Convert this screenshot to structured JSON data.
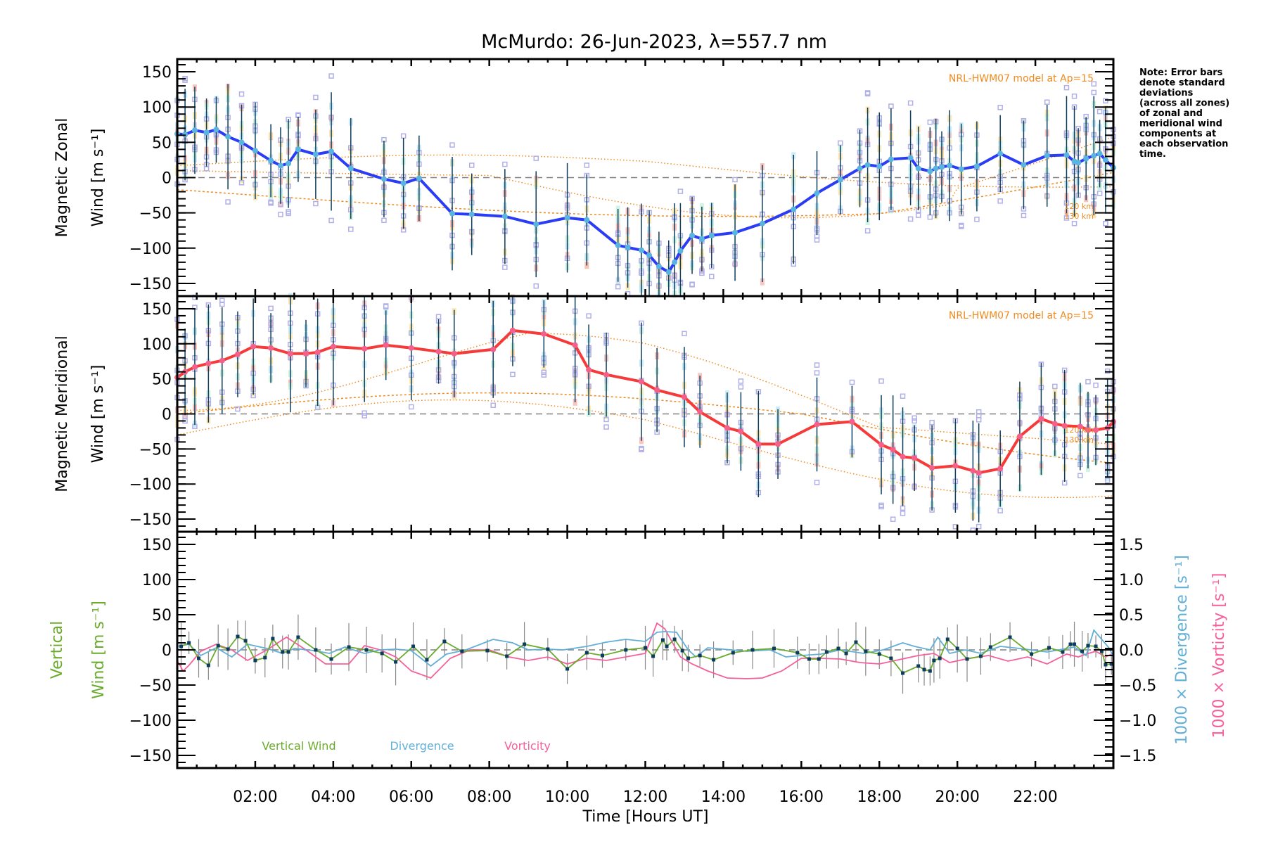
{
  "chart_data": {
    "type": "line",
    "title": "McMurdo: 26-Jun-2023, λ=557.7 nm",
    "xlabel": "Time [Hours UT]",
    "xlim": [
      0,
      24
    ],
    "x_tick_labels": [
      "02:00",
      "04:00",
      "06:00",
      "08:00",
      "10:00",
      "12:00",
      "14:00",
      "16:00",
      "18:00",
      "20:00",
      "22:00"
    ],
    "x_tick_values": [
      2,
      4,
      6,
      8,
      10,
      12,
      14,
      16,
      18,
      20,
      22
    ],
    "note": [
      "Note: Error bars",
      "denote standard",
      "deviations",
      "(across all zones)",
      "of zonal and",
      "meridional wind",
      "components at",
      "each observation",
      "time."
    ],
    "colors": {
      "zonal": "#2b3cf5",
      "zonal_marker": "#5ab4e0",
      "meridional": "#f53a3a",
      "meridional_marker": "#f5608a",
      "vertical": "#6aab2e",
      "divergence": "#62afd8",
      "vorticity": "#f5609a",
      "model": "#f08a1e",
      "errorbar": "#0d3d5c",
      "scatter": "#b0b0e8"
    },
    "panels": [
      {
        "id": "zonal",
        "ylabel_line1": "Magnetic Zonal",
        "ylabel_line2": "Wind [m s",
        "ylabel_sup": "-1",
        "ylabel_end": "]",
        "ylim": [
          -168,
          168
        ],
        "y_tick_values": [
          150,
          100,
          50,
          0,
          -50,
          -100,
          -150
        ],
        "y_tick_labels": [
          "150",
          "100",
          "50",
          "0",
          "−50",
          "−100",
          "−150"
        ],
        "model_label": "NRL-HWM07 model at Ap=15",
        "model_km_labels": [
          "120 km",
          "130 km"
        ],
        "series": {
          "name": "Magnetic Zonal Wind",
          "x": [
            0.0,
            0.2,
            0.45,
            0.75,
            1.0,
            1.3,
            1.65,
            2.0,
            2.4,
            2.65,
            2.85,
            3.1,
            3.55,
            3.95,
            4.45,
            5.3,
            5.8,
            6.2,
            7.05,
            7.55,
            8.4,
            9.2,
            10.0,
            10.5,
            11.3,
            11.55,
            11.9,
            12.1,
            12.35,
            12.6,
            12.75,
            12.9,
            13.2,
            13.45,
            13.7,
            14.3,
            15.0,
            15.8,
            16.4,
            17.0,
            17.5,
            17.7,
            18.0,
            18.3,
            18.8,
            19.0,
            19.3,
            19.45,
            19.6,
            19.8,
            20.1,
            20.5,
            21.1,
            21.7,
            22.3,
            22.8,
            23.0,
            23.1,
            23.3,
            23.5,
            23.65,
            23.8,
            24.0
          ],
          "y": [
            62,
            61,
            67,
            64,
            68,
            58,
            50,
            38,
            24,
            17,
            20,
            40,
            33,
            37,
            13,
            -2,
            -8,
            -1,
            -51,
            -52,
            -55,
            -66,
            -57,
            -60,
            -96,
            -99,
            -103,
            -110,
            -126,
            -134,
            -120,
            -104,
            -82,
            -87,
            -82,
            -78,
            -65,
            -45,
            -22,
            -3,
            13,
            18,
            16,
            26,
            28,
            13,
            9,
            13,
            15,
            17,
            12,
            16,
            34,
            18,
            31,
            32,
            23,
            21,
            27,
            31,
            34,
            25,
            14
          ]
        }
      },
      {
        "id": "meridional",
        "ylabel_line1": "Magnetic Meridional",
        "ylabel_line2": "Wind [m s",
        "ylabel_sup": "-1",
        "ylabel_end": "]",
        "ylim": [
          -168,
          168
        ],
        "y_tick_values": [
          150,
          100,
          50,
          0,
          -50,
          -100,
          -150
        ],
        "y_tick_labels": [
          "150",
          "100",
          "50",
          "0",
          "−50",
          "−100",
          "−150"
        ],
        "model_label": "NRL-HWM07 model at Ap=15",
        "model_km_labels": [
          "120 km",
          "130 km"
        ],
        "series": {
          "name": "Magnetic Meridional Wind",
          "x": [
            0.0,
            0.2,
            0.45,
            0.8,
            1.15,
            1.55,
            1.95,
            2.4,
            2.9,
            3.3,
            3.6,
            4.0,
            4.8,
            5.35,
            6.0,
            6.7,
            7.1,
            8.1,
            8.6,
            9.4,
            10.2,
            10.55,
            11.0,
            11.9,
            12.3,
            13.0,
            13.4,
            14.1,
            14.45,
            14.9,
            15.4,
            16.4,
            17.3,
            18.05,
            18.35,
            18.6,
            18.9,
            19.35,
            19.95,
            20.4,
            20.55,
            21.1,
            21.6,
            22.15,
            22.5,
            22.75,
            23.15,
            23.35,
            23.55,
            23.85,
            24.0
          ],
          "y": [
            52,
            60,
            67,
            72,
            76,
            85,
            96,
            94,
            86,
            86,
            88,
            96,
            93,
            98,
            94,
            89,
            86,
            92,
            119,
            114,
            98,
            63,
            56,
            46,
            34,
            24,
            3,
            -20,
            -25,
            -43,
            -43,
            -15,
            -11,
            -44,
            -51,
            -61,
            -63,
            -77,
            -74,
            -81,
            -84,
            -78,
            -32,
            -7,
            -14,
            -17,
            -18,
            -23,
            -23,
            -20,
            -11
          ]
        }
      },
      {
        "id": "vertical",
        "ylabel_line1": "Vertical",
        "ylabel_line2": "Wind [m s",
        "ylabel_sup": "-1",
        "ylabel_end": "]",
        "ylim": [
          -168,
          168
        ],
        "y_tick_values": [
          150,
          100,
          50,
          0,
          -50,
          -100,
          -150
        ],
        "y_tick_labels": [
          "150",
          "100",
          "50",
          "0",
          "−50",
          "−100",
          "−150"
        ],
        "right_ylim": [
          -1.68,
          1.68
        ],
        "right_tick_values": [
          1.5,
          1.0,
          0.5,
          0.0,
          -0.5,
          -1.0,
          -1.5
        ],
        "right_tick_labels": [
          "1.5",
          "1.0",
          "0.5",
          "0.0",
          "−0.5",
          "−1.0",
          "−1.5"
        ],
        "right_ylabel_div": "1000 × Divergence [s",
        "right_ylabel_vor": "1000 × Vorticity [s",
        "right_ylabel_sup": "-1",
        "right_ylabel_end": "]",
        "legend": [
          "Vertical Wind",
          "Divergence",
          "Vorticity"
        ],
        "series": [
          {
            "name": "Vertical Wind",
            "x": [
              0.1,
              0.3,
              0.55,
              0.8,
              1.05,
              1.3,
              1.55,
              1.75,
              2.0,
              2.25,
              2.45,
              2.7,
              2.85,
              3.1,
              3.55,
              3.95,
              4.4,
              4.85,
              5.25,
              5.6,
              6.05,
              6.4,
              6.85,
              7.3,
              7.95,
              8.45,
              8.9,
              9.5,
              10.0,
              10.5,
              10.9,
              11.5,
              12.0,
              12.2,
              12.45,
              12.55,
              12.75,
              12.95,
              13.1,
              13.4,
              13.75,
              14.25,
              14.75,
              15.3,
              15.9,
              16.2,
              16.45,
              16.65,
              16.95,
              17.15,
              17.4,
              17.65,
              18.0,
              18.3,
              18.6,
              19.0,
              19.15,
              19.3,
              19.4,
              19.55,
              19.75,
              20.0,
              20.25,
              20.6,
              20.85,
              21.35,
              21.9,
              22.35,
              22.7,
              22.9,
              23.0,
              23.2,
              23.35,
              23.55,
              23.7,
              23.8,
              23.95
            ],
            "y": [
              5,
              10,
              -12,
              -22,
              6,
              1,
              19,
              13,
              -15,
              -11,
              16,
              -3,
              -3,
              18,
              0,
              -13,
              4,
              0,
              -5,
              -17,
              5,
              -14,
              12,
              -2,
              -1,
              -9,
              8,
              1,
              -27,
              -4,
              -8,
              0,
              3,
              -9,
              14,
              5,
              15,
              -1,
              -12,
              -8,
              -14,
              -4,
              0,
              2,
              -4,
              -13,
              -13,
              -3,
              2,
              -5,
              11,
              -2,
              -6,
              -12,
              -33,
              -23,
              -28,
              -30,
              -15,
              -12,
              15,
              2,
              -13,
              -9,
              4,
              18,
              -6,
              3,
              -3,
              8,
              8,
              -2,
              6,
              5,
              -2,
              -21,
              -20
            ]
          },
          {
            "name": "Divergence",
            "x": [
              0.0,
              0.3,
              0.6,
              1.0,
              1.4,
              1.8,
              2.3,
              2.7,
              3.0,
              3.5,
              3.9,
              4.3,
              4.8,
              5.2,
              5.6,
              6.0,
              6.5,
              6.9,
              7.4,
              8.1,
              8.6,
              9.0,
              9.5,
              9.9,
              10.5,
              11.0,
              11.5,
              12.0,
              12.3,
              12.5,
              12.8,
              13.1,
              13.3,
              13.6,
              14.2,
              14.6,
              15.2,
              15.6,
              16.0,
              16.5,
              17.0,
              17.6,
              18.1,
              18.6,
              18.9,
              19.3,
              19.5,
              19.8,
              20.2,
              20.6,
              21.1,
              21.6,
              22.3,
              22.6,
              23.0,
              23.3,
              23.5,
              23.7,
              23.9,
              24.0
            ],
            "y": [
              0.05,
              0.08,
              -0.08,
              0.03,
              -0.1,
              0.08,
              0.02,
              -0.05,
              0.02,
              -0.01,
              -0.05,
              0.04,
              -0.05,
              0.0,
              0.01,
              -0.01,
              -0.23,
              -0.06,
              0.0,
              0.15,
              0.1,
              0.0,
              0.01,
              0.0,
              0.05,
              0.11,
              0.15,
              0.12,
              0.25,
              0.26,
              0.25,
              0.0,
              -0.1,
              0.03,
              0.0,
              -0.02,
              0.0,
              -0.1,
              -0.08,
              -0.06,
              0.0,
              -0.05,
              0.0,
              0.1,
              0.05,
              0.0,
              0.18,
              -0.05,
              0.0,
              -0.05,
              0.05,
              0.02,
              -0.03,
              0.0,
              0.04,
              -0.08,
              0.28,
              0.15,
              0.02,
              -0.1
            ]
          },
          {
            "name": "Vorticity",
            "x": [
              0.0,
              0.15,
              0.3,
              0.6,
              1.0,
              1.4,
              1.8,
              2.3,
              2.8,
              3.3,
              3.8,
              4.4,
              4.8,
              5.2,
              5.6,
              6.0,
              6.5,
              7.0,
              7.5,
              8.0,
              8.5,
              9.0,
              9.5,
              10.0,
              10.5,
              11.0,
              11.5,
              12.0,
              12.3,
              12.5,
              12.7,
              12.9,
              13.2,
              13.6,
              14.1,
              14.6,
              15.0,
              15.5,
              16.0,
              16.5,
              17.0,
              17.5,
              18.0,
              18.5,
              19.0,
              19.4,
              19.8,
              20.3,
              20.8,
              21.3,
              21.8,
              22.3,
              22.8,
              23.1,
              23.3,
              23.55,
              23.8,
              24.0
            ],
            "y": [
              -0.15,
              -0.3,
              -0.22,
              -0.02,
              0.08,
              0.0,
              -0.15,
              0.0,
              0.18,
              0.0,
              -0.2,
              -0.2,
              0.06,
              0.0,
              -0.1,
              -0.3,
              -0.4,
              -0.12,
              0.0,
              0.0,
              -0.1,
              -0.15,
              -0.1,
              -0.2,
              -0.12,
              -0.15,
              -0.1,
              -0.05,
              0.38,
              0.3,
              0.1,
              -0.1,
              -0.2,
              -0.3,
              -0.4,
              -0.41,
              -0.4,
              -0.3,
              -0.12,
              -0.12,
              -0.13,
              -0.18,
              -0.2,
              -0.14,
              -0.08,
              -0.05,
              -0.18,
              -0.12,
              -0.08,
              -0.16,
              -0.1,
              -0.2,
              -0.06,
              -0.1,
              -0.06,
              -0.02,
              -0.1,
              -0.05
            ]
          }
        ]
      }
    ]
  }
}
